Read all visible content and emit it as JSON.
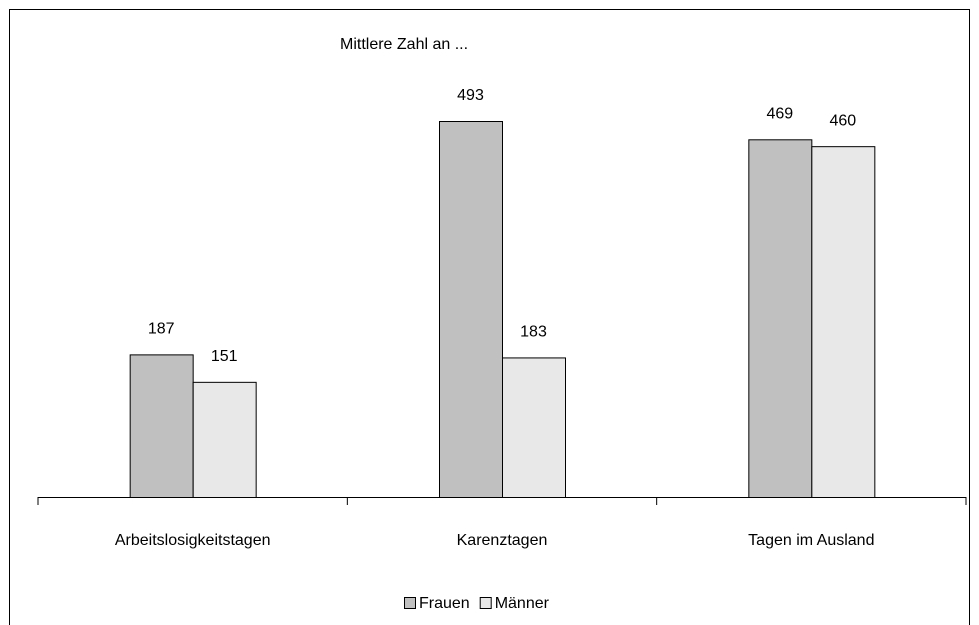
{
  "chart_data": {
    "type": "bar",
    "title": "Mittlere Zahl an ...",
    "categories": [
      "Arbeitslosigkeitstagen",
      "Karenztagen",
      "Tagen im Ausland"
    ],
    "series": [
      {
        "name": "Frauen",
        "color": "#c0c0c0",
        "values": [
          187,
          493,
          469
        ]
      },
      {
        "name": "Männer",
        "color": "#e8e8e8",
        "values": [
          151,
          183,
          460
        ]
      }
    ],
    "legend": "bottom"
  }
}
